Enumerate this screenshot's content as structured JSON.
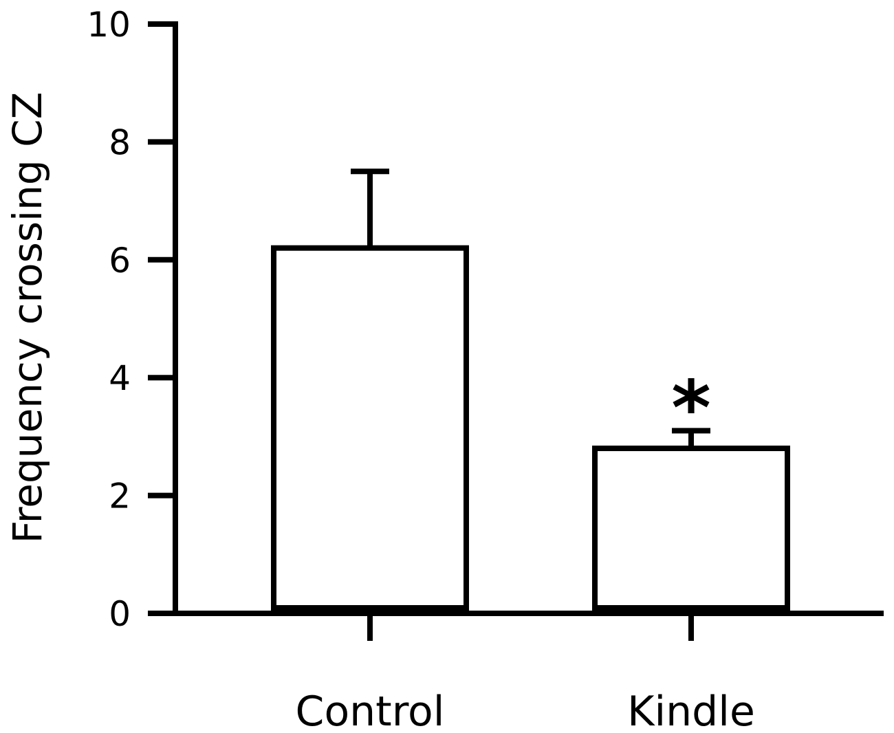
{
  "chart_data": {
    "type": "bar",
    "title": "",
    "xlabel": "",
    "ylabel": "Frequency crossing CZ",
    "categories": [
      "Control",
      "Kindle"
    ],
    "values": [
      6.2,
      2.8
    ],
    "errors": [
      1.3,
      0.3
    ],
    "annotations": [
      "",
      "*"
    ],
    "ylim": [
      0,
      10
    ],
    "yticks": [
      0,
      2,
      4,
      6,
      8,
      10
    ],
    "grid": false,
    "legend": "none",
    "colors": {
      "bar_fill": "#ffffff",
      "bar_stroke": "#000000",
      "axis": "#000000"
    }
  }
}
